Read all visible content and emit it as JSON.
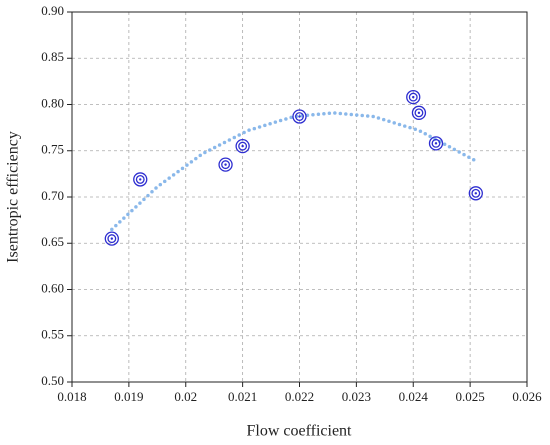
{
  "chart_data": {
    "type": "scatter",
    "x_label": "Flow coefficient",
    "y_label": "Isentropic efficiency",
    "xlim": [
      0.018,
      0.026
    ],
    "xticks": [
      0.018,
      0.019,
      0.02,
      0.021,
      0.022,
      0.023,
      0.024,
      0.025,
      0.026
    ],
    "ylim": [
      0.5,
      0.9
    ],
    "yticks": [
      {
        "value": 0.5,
        "label": "0.50"
      },
      0.55,
      {
        "value": 0.6,
        "label": "0.60"
      },
      0.65,
      {
        "value": 0.7,
        "label": "0.70"
      },
      0.75,
      {
        "value": 0.8,
        "label": "0.80"
      },
      0.85,
      {
        "value": 0.9,
        "label": "0.90"
      }
    ],
    "grid": true,
    "series": [
      {
        "color": "#2d2dd0",
        "x": [
          0.0187,
          0.0192,
          0.0207,
          0.021,
          0.022,
          0.024,
          0.0241,
          0.0244,
          0.0251
        ],
        "values": [
          0.655,
          0.719,
          0.735,
          0.755,
          0.787,
          0.808,
          0.791,
          0.758,
          0.704
        ]
      }
    ],
    "fit": {
      "color": "#8ab8ea",
      "x": [
        0.0187,
        0.0195,
        0.0203,
        0.0211,
        0.0219,
        0.0226,
        0.0233,
        0.0241,
        0.0251
      ],
      "values": [
        0.665,
        0.711,
        0.747,
        0.772,
        0.787,
        0.791,
        0.787,
        0.772,
        0.739
      ]
    }
  }
}
